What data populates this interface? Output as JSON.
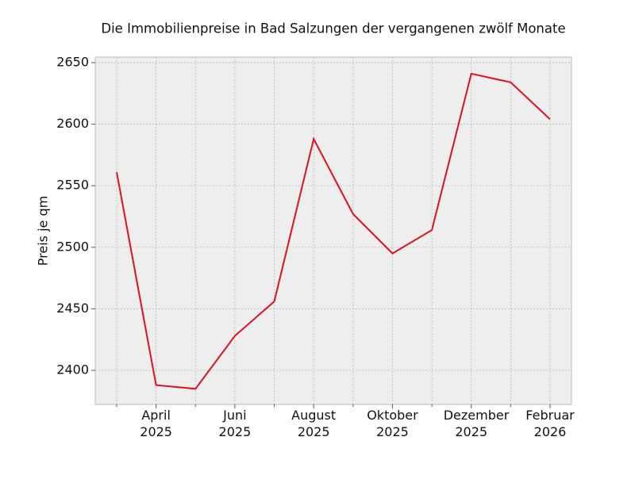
{
  "chart_data": {
    "type": "line",
    "title": "Die Immobilienpreise in Bad Salzungen der vergangenen zwölf Monate",
    "y_label": "Preis je qm",
    "categories": [
      null,
      "April 2025",
      null,
      "Juni 2025",
      null,
      "August 2025",
      null,
      "Oktober 2025",
      null,
      "Dezember 2025",
      null,
      "Februar 2026"
    ],
    "series": [
      {
        "name": "Preis je qm",
        "color": "#e0101e",
        "values": [
          2561,
          2388,
          2385,
          2428,
          2456,
          2588,
          2527,
          2495,
          2514,
          2641,
          2634,
          2604
        ]
      }
    ],
    "ylim": [
      2372.3,
      2654.5
    ],
    "yticks": [
      2400,
      2450,
      2500,
      2550,
      2600,
      2650
    ],
    "grid": true
  }
}
